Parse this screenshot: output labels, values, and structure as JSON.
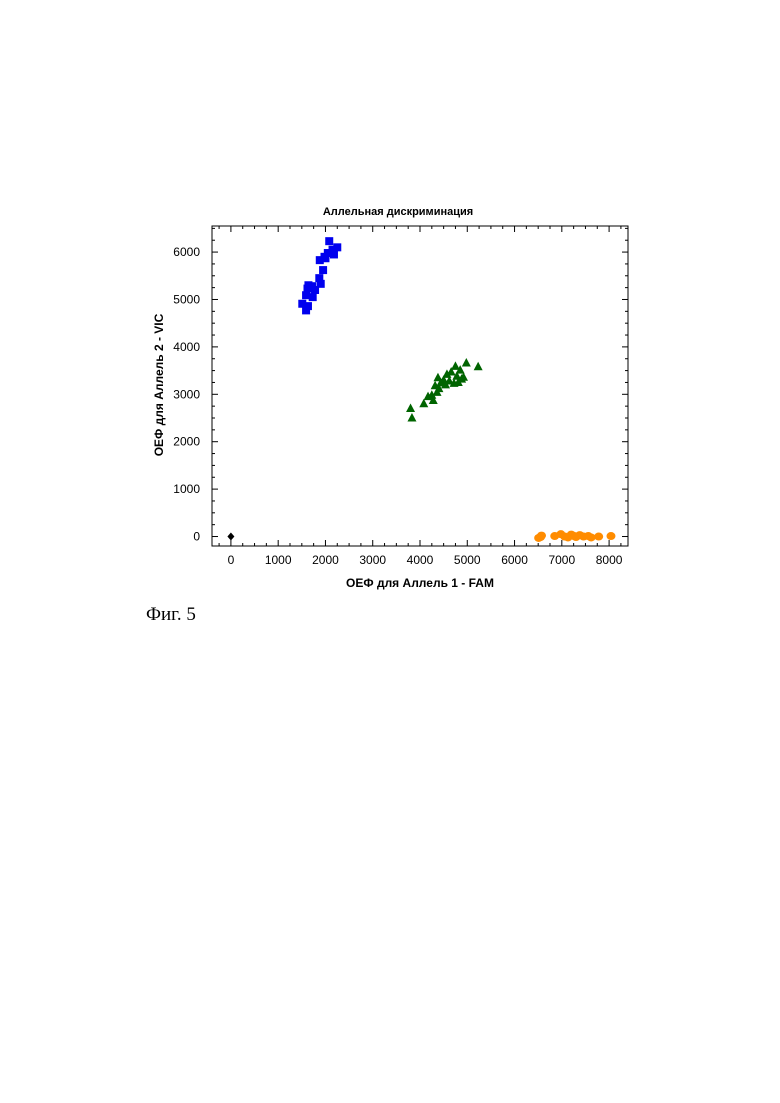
{
  "figure": {
    "caption": "Фиг. 5"
  },
  "chart_data": {
    "type": "scatter",
    "title": "Аллельная дискриминация",
    "xlabel": "ОЕФ для Аллель 1 - FAM",
    "ylabel": "ОЕФ для Аллель 2 - VIC",
    "xlim": [
      -400,
      8400
    ],
    "ylim": [
      -200,
      6550
    ],
    "xticks": [
      0,
      1000,
      2000,
      3000,
      4000,
      5000,
      6000,
      7000,
      8000
    ],
    "yticks": [
      0,
      1000,
      2000,
      3000,
      4000,
      5000,
      6000
    ],
    "grid": false,
    "series": [
      {
        "marker": "square",
        "color": "#0000ee",
        "points": [
          [
            2080,
            6230
          ],
          [
            2150,
            6050
          ],
          [
            2250,
            6100
          ],
          [
            2050,
            5980
          ],
          [
            1980,
            5900
          ],
          [
            2180,
            5950
          ],
          [
            1880,
            5830
          ],
          [
            2000,
            5870
          ],
          [
            1950,
            5620
          ],
          [
            1870,
            5450
          ],
          [
            1900,
            5330
          ],
          [
            1640,
            5300
          ],
          [
            1720,
            5280
          ],
          [
            1780,
            5200
          ],
          [
            1620,
            5230
          ],
          [
            1590,
            5090
          ],
          [
            1730,
            5050
          ],
          [
            1510,
            4910
          ],
          [
            1630,
            4860
          ],
          [
            1590,
            4770
          ]
        ]
      },
      {
        "marker": "triangle",
        "color": "#006400",
        "points": [
          [
            4980,
            3660
          ],
          [
            5230,
            3580
          ],
          [
            4750,
            3590
          ],
          [
            4850,
            3510
          ],
          [
            4660,
            3470
          ],
          [
            4570,
            3420
          ],
          [
            4780,
            3380
          ],
          [
            4880,
            3320
          ],
          [
            4920,
            3360
          ],
          [
            4500,
            3300
          ],
          [
            4620,
            3280
          ],
          [
            4380,
            3350
          ],
          [
            4440,
            3240
          ],
          [
            4720,
            3230
          ],
          [
            4540,
            3200
          ],
          [
            4320,
            3180
          ],
          [
            4810,
            3250
          ],
          [
            4400,
            3120
          ],
          [
            4360,
            3040
          ],
          [
            4250,
            2980
          ],
          [
            4280,
            2870
          ],
          [
            4170,
            2950
          ],
          [
            4080,
            2800
          ],
          [
            3800,
            2700
          ],
          [
            3830,
            2500
          ]
        ]
      },
      {
        "marker": "circle",
        "color": "#ff8c00",
        "points": [
          [
            6510,
            -30
          ],
          [
            6550,
            -10
          ],
          [
            6570,
            20
          ],
          [
            6850,
            10
          ],
          [
            6980,
            50
          ],
          [
            7060,
            0
          ],
          [
            7130,
            -20
          ],
          [
            7200,
            40
          ],
          [
            7260,
            10
          ],
          [
            7300,
            -10
          ],
          [
            7380,
            30
          ],
          [
            7460,
            0
          ],
          [
            7560,
            10
          ],
          [
            7620,
            -20
          ],
          [
            7780,
            0
          ],
          [
            8040,
            10
          ]
        ]
      },
      {
        "marker": "diamond",
        "color": "#000000",
        "points": [
          [
            0,
            0
          ]
        ]
      }
    ]
  }
}
